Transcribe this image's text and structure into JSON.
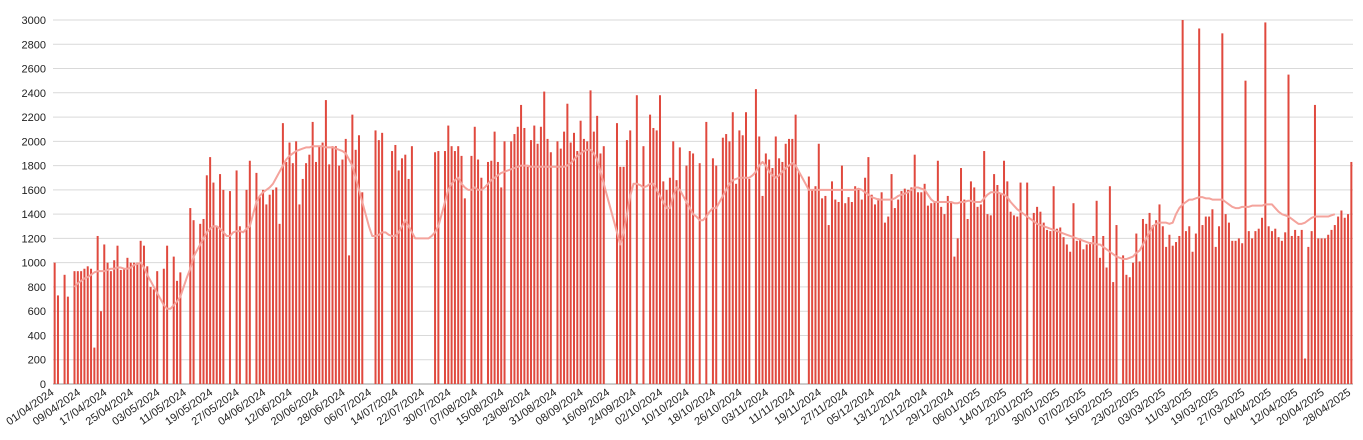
{
  "chart_data": {
    "type": "bar",
    "categories": [
      "01/04/2024",
      null,
      null,
      null,
      null,
      null,
      null,
      null,
      "09/04/2024",
      null,
      null,
      null,
      null,
      null,
      null,
      null,
      "17/04/2024",
      null,
      null,
      null,
      null,
      null,
      null,
      null,
      "25/04/2024",
      null,
      null,
      null,
      null,
      null,
      null,
      null,
      "03/05/2024",
      null,
      null,
      null,
      null,
      null,
      null,
      null,
      "11/05/2024",
      null,
      null,
      null,
      null,
      null,
      null,
      null,
      "19/05/2024",
      null,
      null,
      null,
      null,
      null,
      null,
      null,
      "27/05/2024",
      null,
      null,
      null,
      null,
      null,
      null,
      null,
      "04/06/2024",
      null,
      null,
      null,
      null,
      null,
      null,
      null,
      "12/06/2024",
      null,
      null,
      null,
      null,
      null,
      null,
      null,
      "20/06/2024",
      null,
      null,
      null,
      null,
      null,
      null,
      null,
      "28/06/2024",
      null,
      null,
      null,
      null,
      null,
      null,
      null,
      "06/07/2024",
      null,
      null,
      null,
      null,
      null,
      null,
      null,
      "14/07/2024",
      null,
      null,
      null,
      null,
      null,
      null,
      null,
      "22/07/2024",
      null,
      null,
      null,
      null,
      null,
      null,
      null,
      "30/07/2024",
      null,
      null,
      null,
      null,
      null,
      null,
      null,
      "07/08/2024",
      null,
      null,
      null,
      null,
      null,
      null,
      null,
      "15/08/2024",
      null,
      null,
      null,
      null,
      null,
      null,
      null,
      "23/08/2024",
      null,
      null,
      null,
      null,
      null,
      null,
      null,
      "31/08/2024",
      null,
      null,
      null,
      null,
      null,
      null,
      null,
      "08/09/2024",
      null,
      null,
      null,
      null,
      null,
      null,
      null,
      "16/09/2024",
      null,
      null,
      null,
      null,
      null,
      null,
      null,
      "24/09/2024",
      null,
      null,
      null,
      null,
      null,
      null,
      null,
      "02/10/2024",
      null,
      null,
      null,
      null,
      null,
      null,
      null,
      "10/10/2024",
      null,
      null,
      null,
      null,
      null,
      null,
      null,
      "18/10/2024",
      null,
      null,
      null,
      null,
      null,
      null,
      null,
      "26/10/2024",
      null,
      null,
      null,
      null,
      null,
      null,
      null,
      "03/11/2024",
      null,
      null,
      null,
      null,
      null,
      null,
      null,
      "11/11/2024",
      null,
      null,
      null,
      null,
      null,
      null,
      null,
      "19/11/2024",
      null,
      null,
      null,
      null,
      null,
      null,
      null,
      "27/11/2024",
      null,
      null,
      null,
      null,
      null,
      null,
      null,
      "05/12/2024",
      null,
      null,
      null,
      null,
      null,
      null,
      null,
      "13/12/2024",
      null,
      null,
      null,
      null,
      null,
      null,
      null,
      "21/12/2024",
      null,
      null,
      null,
      null,
      null,
      null,
      null,
      "29/12/2024",
      null,
      null,
      null,
      null,
      null,
      null,
      null,
      "06/01/2025",
      null,
      null,
      null,
      null,
      null,
      null,
      null,
      "14/01/2025",
      null,
      null,
      null,
      null,
      null,
      null,
      null,
      "22/01/2025",
      null,
      null,
      null,
      null,
      null,
      null,
      null,
      "30/01/2025",
      null,
      null,
      null,
      null,
      null,
      null,
      null,
      "07/02/2025",
      null,
      null,
      null,
      null,
      null,
      null,
      null,
      "15/02/2025",
      null,
      null,
      null,
      null,
      null,
      null,
      null,
      "23/02/2025",
      null,
      null,
      null,
      null,
      null,
      null,
      null,
      "03/03/2025",
      null,
      null,
      null,
      null,
      null,
      null,
      null,
      "11/03/2025",
      null,
      null,
      null,
      null,
      null,
      null,
      null,
      "19/03/2025",
      null,
      null,
      null,
      null,
      null,
      null,
      null,
      "27/03/2025",
      null,
      null,
      null,
      null,
      null,
      null,
      null,
      "04/04/2025",
      null,
      null,
      null,
      null,
      null,
      null,
      null,
      "12/04/2025",
      null,
      null,
      null,
      null,
      null,
      null,
      null,
      "20/04/2025",
      null,
      null,
      null,
      null,
      null,
      null,
      null,
      "28/04/2025"
    ],
    "series": [
      {
        "color": "#e0493e",
        "values": [
          1000,
          730,
          0,
          900,
          720,
          0,
          930,
          930,
          930,
          950,
          970,
          950,
          300,
          1220,
          600,
          1150,
          1000,
          930,
          1020,
          1140,
          940,
          950,
          1040,
          1000,
          1000,
          1000,
          1180,
          1140,
          970,
          800,
          780,
          930,
          0,
          950,
          1140,
          0,
          1050,
          850,
          920,
          0,
          0,
          1450,
          1350,
          0,
          1320,
          1360,
          1720,
          1870,
          1660,
          1300,
          1730,
          1600,
          0,
          1590,
          0,
          1760,
          1300,
          0,
          1600,
          1840,
          0,
          1740,
          1540,
          1600,
          1480,
          1560,
          1600,
          1620,
          1320,
          2150,
          1830,
          1990,
          1820,
          2000,
          1480,
          1690,
          1820,
          1890,
          2160,
          1830,
          1960,
          1990,
          2340,
          1810,
          1960,
          1960,
          1800,
          1850,
          2020,
          1060,
          2220,
          1930,
          2050,
          1580,
          0,
          0,
          0,
          2090,
          2010,
          2070,
          0,
          0,
          1920,
          1970,
          1760,
          1860,
          1890,
          1690,
          1960,
          0,
          0,
          0,
          0,
          0,
          0,
          1910,
          1920,
          0,
          1920,
          2130,
          1960,
          1920,
          1960,
          1880,
          1530,
          0,
          1880,
          2120,
          1850,
          1700,
          0,
          1830,
          1840,
          2080,
          1830,
          1620,
          2000,
          0,
          2000,
          2060,
          2120,
          2300,
          2110,
          1790,
          2010,
          2130,
          1980,
          2120,
          2410,
          2020,
          1910,
          0,
          2000,
          1940,
          2080,
          2310,
          1990,
          2070,
          1920,
          2170,
          2020,
          2000,
          2420,
          2080,
          2210,
          1900,
          1960,
          0,
          0,
          0,
          2150,
          1790,
          1790,
          2010,
          2090,
          0,
          2380,
          0,
          1960,
          0,
          2220,
          2110,
          2090,
          2380,
          1670,
          1600,
          1700,
          2000,
          1680,
          1950,
          0,
          1800,
          1920,
          1900,
          0,
          1820,
          0,
          2160,
          0,
          1860,
          1800,
          0,
          2030,
          2060,
          2000,
          2240,
          1650,
          2090,
          2050,
          2240,
          1690,
          0,
          2430,
          2040,
          1550,
          1900,
          1850,
          1780,
          2040,
          1860,
          1830,
          1980,
          2020,
          2020,
          2220,
          1750,
          0,
          0,
          1710,
          1600,
          1630,
          1980,
          1530,
          1550,
          1310,
          1670,
          1520,
          1500,
          1800,
          1490,
          1540,
          1500,
          1630,
          1600,
          1520,
          1700,
          1870,
          1560,
          1480,
          1530,
          1580,
          1330,
          1380,
          1730,
          1450,
          1520,
          1590,
          1610,
          1600,
          1620,
          1890,
          1580,
          1580,
          1650,
          1470,
          1490,
          1500,
          1840,
          1460,
          1400,
          1550,
          1500,
          1050,
          1200,
          1780,
          1520,
          1360,
          1670,
          1620,
          1460,
          1480,
          1920,
          1400,
          1390,
          1730,
          1640,
          1570,
          1840,
          1670,
          1420,
          1390,
          1380,
          1660,
          0,
          1660,
          0,
          1410,
          1460,
          1420,
          1330,
          1270,
          1260,
          1630,
          1280,
          1290,
          1210,
          1150,
          1090,
          1490,
          1180,
          1200,
          1110,
          1150,
          1170,
          1220,
          1510,
          1040,
          1220,
          960,
          1630,
          840,
          1310,
          0,
          1060,
          900,
          880,
          1000,
          1240,
          1010,
          1360,
          1320,
          1410,
          1310,
          1350,
          1480,
          1300,
          1130,
          1230,
          1140,
          1170,
          1220,
          3000,
          1260,
          1300,
          1090,
          1240,
          2930,
          1310,
          1380,
          1380,
          1440,
          1130,
          1300,
          2890,
          1400,
          1330,
          1180,
          1180,
          1200,
          1160,
          2500,
          1260,
          1200,
          1260,
          1280,
          1370,
          2980,
          1300,
          1260,
          1280,
          1210,
          1180,
          1250,
          2550,
          1220,
          1270,
          1220,
          1270,
          210,
          1130,
          1260,
          2300,
          1200,
          1200,
          1200,
          1230,
          1270,
          1310,
          1380,
          1430,
          1370,
          1400,
          1830
        ]
      },
      {
        "type": "line",
        "color": "#f4a39c",
        "values": [
          null,
          null,
          null,
          null,
          null,
          null,
          800,
          830,
          850,
          870,
          880,
          900,
          920,
          930,
          930,
          930,
          940,
          950,
          950,
          960,
          960,
          950,
          950,
          960,
          980,
          990,
          1000,
          960,
          900,
          850,
          800,
          750,
          700,
          650,
          620,
          620,
          650,
          680,
          720,
          800,
          880,
          950,
          1050,
          1100,
          1150,
          1200,
          1250,
          1280,
          1300,
          1300,
          1280,
          1250,
          1220,
          1220,
          1250,
          1260,
          1260,
          1250,
          1280,
          1300,
          1400,
          1500,
          1550,
          1580,
          1600,
          1620,
          1650,
          1700,
          1750,
          1800,
          1850,
          1880,
          1900,
          1920,
          1930,
          1940,
          1950,
          1950,
          1960,
          1960,
          1960,
          1960,
          1950,
          1950,
          1950,
          1940,
          1930,
          1920,
          1900,
          1850,
          1800,
          1700,
          1600,
          1500,
          1400,
          1300,
          1220,
          1220,
          1230,
          1250,
          1250,
          1230,
          1220,
          1220,
          1250,
          1300,
          1350,
          1300,
          1250,
          1200,
          1200,
          1200,
          1200,
          1200,
          1220,
          1250,
          1300,
          1400,
          1500,
          1600,
          1650,
          1680,
          1700,
          1650,
          1620,
          1600,
          1600,
          1620,
          1600,
          1600,
          1620,
          1650,
          1680,
          1700,
          1720,
          1740,
          1750,
          1760,
          1770,
          1780,
          1790,
          1800,
          1800,
          1800,
          1790,
          1790,
          1790,
          1790,
          1790,
          1790,
          1790,
          1790,
          1790,
          1790,
          1790,
          1800,
          1820,
          1850,
          1880,
          1900,
          1920,
          1930,
          1930,
          1900,
          1850,
          1750,
          1650,
          1550,
          1450,
          1350,
          1250,
          1150,
          1250,
          1400,
          1550,
          1650,
          1650,
          1640,
          1620,
          1630,
          1650,
          1650,
          1600,
          1550,
          1500,
          1450,
          1450,
          1550,
          1620,
          1600,
          1550,
          1500,
          1450,
          1400,
          1380,
          1350,
          1350,
          1380,
          1420,
          1450,
          1450,
          1500,
          1550,
          1600,
          1650,
          1680,
          1690,
          1700,
          1700,
          1700,
          1700,
          1720,
          1750,
          1800,
          1830,
          1800,
          1750,
          1720,
          1700,
          1720,
          1750,
          1780,
          1800,
          1820,
          1800,
          1750,
          1700,
          1650,
          1600,
          1600,
          1600,
          1600,
          1600,
          1600,
          1600,
          1600,
          1600,
          1600,
          1600,
          1600,
          1600,
          1600,
          1600,
          1610,
          1600,
          1580,
          1560,
          1540,
          1530,
          1520,
          1520,
          1520,
          1520,
          1520,
          1530,
          1550,
          1560,
          1570,
          1580,
          1600,
          1620,
          1620,
          1610,
          1600,
          1560,
          1520,
          1500,
          1500,
          1500,
          1500,
          1500,
          1500,
          1490,
          1490,
          1500,
          1500,
          1510,
          1510,
          1500,
          1500,
          1500,
          1530,
          1560,
          1580,
          1580,
          1580,
          1570,
          1560,
          1540,
          1500,
          1470,
          1440,
          1420,
          1400,
          1380,
          1360,
          1340,
          1320,
          1310,
          1300,
          1290,
          1280,
          1270,
          1260,
          1250,
          1240,
          1230,
          1220,
          1210,
          1200,
          1190,
          1180,
          1170,
          1160,
          1160,
          1150,
          1150,
          1130,
          1110,
          1090,
          1070,
          1050,
          1040,
          1030,
          1030,
          1040,
          1050,
          1080,
          1100,
          1150,
          1200,
          1250,
          1300,
          1320,
          1330,
          1330,
          1330,
          1320,
          1330,
          1400,
          1450,
          1480,
          1500,
          1520,
          1520,
          1530,
          1540,
          1540,
          1530,
          1530,
          1520,
          1520,
          1520,
          1520,
          1500,
          1480,
          1460,
          1450,
          1450,
          1460,
          1460,
          1460,
          1470,
          1470,
          1470,
          1470,
          1480,
          1480,
          1480,
          1450,
          1420,
          1400,
          1390,
          1380,
          1360,
          1340,
          1320,
          1320,
          1330,
          1350,
          1370,
          1380,
          1380,
          1380,
          1380,
          1380,
          1390,
          1400,
          null,
          null,
          null,
          null,
          null
        ]
      }
    ],
    "ylim": [
      0,
      3000
    ],
    "yticks": [
      0,
      200,
      400,
      600,
      800,
      1000,
      1200,
      1400,
      1600,
      1800,
      2000,
      2200,
      2400,
      2600,
      2800,
      3000
    ],
    "grid": true
  }
}
